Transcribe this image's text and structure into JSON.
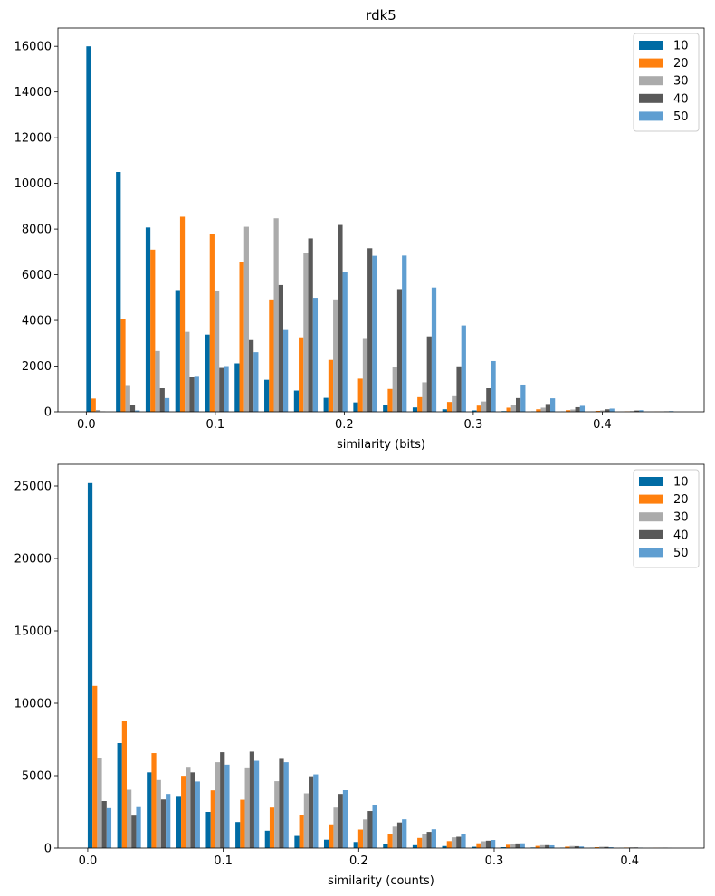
{
  "figure": {
    "background": "#ffffff"
  },
  "chart_data": [
    {
      "type": "bar",
      "title": "rdk5",
      "xlabel": "similarity (bits)",
      "ylabel": "",
      "xlim": [
        -0.022,
        0.479
      ],
      "ylim": [
        0,
        16800
      ],
      "xticks": [
        0.0,
        0.1,
        0.2,
        0.3,
        0.4
      ],
      "xtick_labels": [
        "0.0",
        "0.1",
        "0.2",
        "0.3",
        "0.4"
      ],
      "yticks": [
        0,
        2000,
        4000,
        6000,
        8000,
        10000,
        12000,
        14000,
        16000
      ],
      "ytick_labels": [
        "0",
        "2000",
        "4000",
        "6000",
        "8000",
        "10000",
        "12000",
        "14000",
        "16000"
      ],
      "grid": false,
      "legend_position": "top-right",
      "bin_starts": [
        0.0,
        0.023,
        0.046,
        0.069,
        0.092,
        0.115,
        0.138,
        0.161,
        0.184,
        0.207,
        0.23,
        0.253,
        0.276,
        0.299,
        0.322,
        0.345,
        0.368,
        0.391,
        0.414,
        0.437
      ],
      "bin_width": 0.023,
      "series": [
        {
          "name": "10",
          "color": "#006ba4",
          "values": [
            16000,
            10500,
            8070,
            5330,
            3380,
            2120,
            1400,
            930,
            610,
            410,
            280,
            190,
            110,
            60,
            30,
            15,
            8,
            4,
            2,
            1
          ]
        },
        {
          "name": "20",
          "color": "#ff800e",
          "values": [
            580,
            4080,
            7100,
            8540,
            7770,
            6550,
            4920,
            3260,
            2270,
            1450,
            1000,
            640,
            430,
            270,
            180,
            110,
            70,
            40,
            20,
            8
          ]
        },
        {
          "name": "30",
          "color": "#ababab",
          "values": [
            80,
            1170,
            2660,
            3500,
            5280,
            8100,
            8470,
            6960,
            4920,
            3190,
            1970,
            1290,
            720,
            450,
            300,
            180,
            100,
            60,
            30,
            12
          ]
        },
        {
          "name": "40",
          "color": "#595959",
          "values": [
            10,
            300,
            1030,
            1540,
            1920,
            3140,
            5550,
            7590,
            8180,
            7160,
            5370,
            3300,
            1990,
            1030,
            600,
            340,
            200,
            110,
            55,
            20
          ]
        },
        {
          "name": "50",
          "color": "#5f9ed1",
          "values": [
            0,
            60,
            600,
            1570,
            2000,
            2610,
            3580,
            4990,
            6120,
            6830,
            6840,
            5440,
            3780,
            2220,
            1190,
            590,
            260,
            140,
            70,
            30
          ]
        }
      ]
    },
    {
      "type": "bar",
      "title": "",
      "xlabel": "similarity (counts)",
      "ylabel": "",
      "xlim": [
        -0.022,
        0.455
      ],
      "ylim": [
        0,
        26500
      ],
      "xticks": [
        0.0,
        0.1,
        0.2,
        0.3,
        0.4
      ],
      "xtick_labels": [
        "0.0",
        "0.1",
        "0.2",
        "0.3",
        "0.4"
      ],
      "yticks": [
        0,
        5000,
        10000,
        15000,
        20000,
        25000
      ],
      "ytick_labels": [
        "0",
        "5000",
        "10000",
        "15000",
        "20000",
        "25000"
      ],
      "grid": false,
      "legend_position": "top-right",
      "bin_starts": [
        0.0,
        0.0218,
        0.0436,
        0.0654,
        0.0872,
        0.109,
        0.1308,
        0.1526,
        0.1744,
        0.1962,
        0.218,
        0.2398,
        0.2616,
        0.2834,
        0.3052,
        0.327,
        0.3488,
        0.3706,
        0.3924,
        0.4142
      ],
      "bin_width": 0.0218,
      "series": [
        {
          "name": "10",
          "color": "#006ba4",
          "values": [
            25200,
            7250,
            5230,
            3540,
            2500,
            1800,
            1200,
            840,
            580,
            420,
            290,
            200,
            140,
            90,
            60,
            40,
            25,
            15,
            8,
            4
          ]
        },
        {
          "name": "20",
          "color": "#ff800e",
          "values": [
            11200,
            8750,
            6560,
            4990,
            3990,
            3340,
            2800,
            2260,
            1640,
            1280,
            940,
            700,
            480,
            330,
            230,
            150,
            100,
            60,
            35,
            15
          ]
        },
        {
          "name": "30",
          "color": "#ababab",
          "values": [
            6250,
            4030,
            4700,
            5550,
            5930,
            5510,
            4620,
            3780,
            2800,
            1980,
            1480,
            980,
            740,
            470,
            310,
            200,
            140,
            90,
            55,
            25
          ]
        },
        {
          "name": "40",
          "color": "#595959",
          "values": [
            3250,
            2240,
            3360,
            5230,
            6620,
            6660,
            6160,
            4960,
            3740,
            2560,
            1770,
            1120,
            780,
            510,
            320,
            200,
            130,
            80,
            45,
            20
          ]
        },
        {
          "name": "50",
          "color": "#5f9ed1",
          "values": [
            2760,
            2830,
            3740,
            4600,
            5760,
            6030,
            5930,
            5090,
            4000,
            2990,
            1990,
            1300,
            940,
            560,
            330,
            190,
            110,
            60,
            30,
            10
          ]
        }
      ]
    }
  ]
}
